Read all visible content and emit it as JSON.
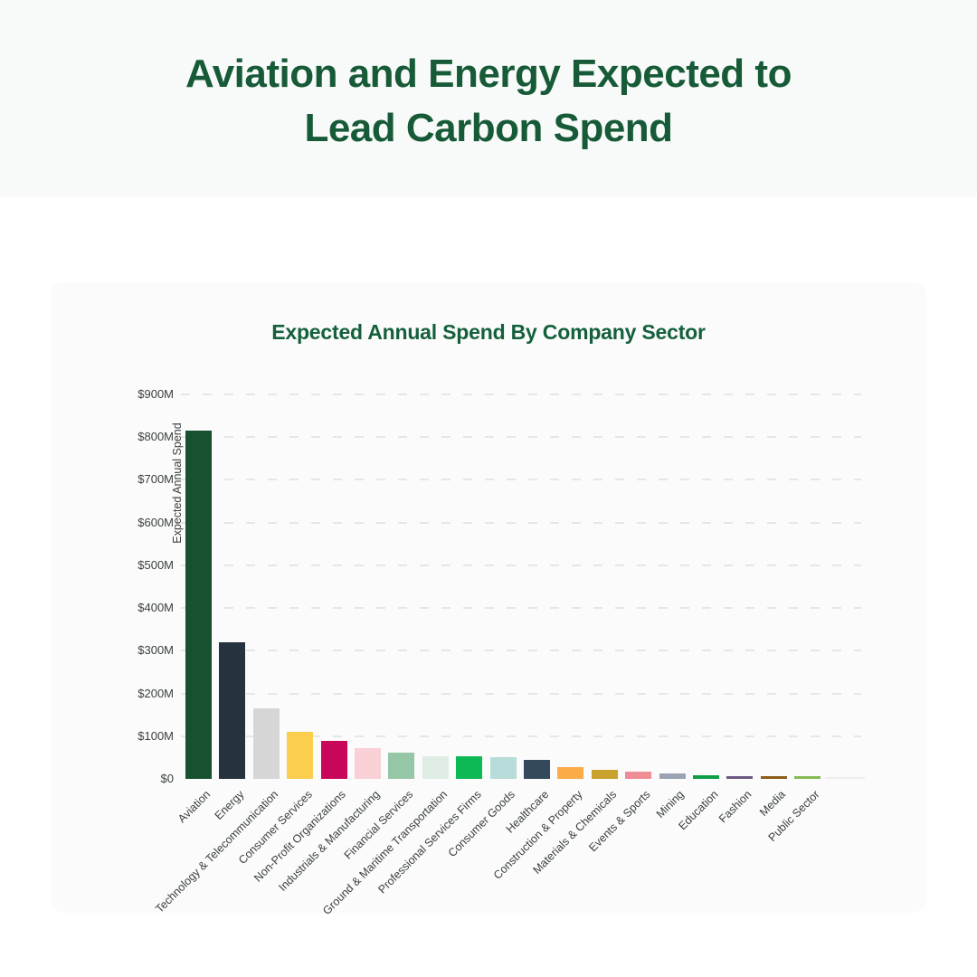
{
  "page": {
    "background": "#ffffff",
    "header": {
      "background": "#f7faf8",
      "title_line1": "Aviation and Energy Expected to",
      "title_line2": "Lead Carbon Spend",
      "title_color": "#175a38"
    },
    "card": {
      "background": "#fafbfa"
    }
  },
  "chart_data": {
    "type": "bar",
    "title": "Expected Annual Spend By Company Sector",
    "title_color": "#15603c",
    "xlabel": "",
    "ylabel": "Expected Annual Spend",
    "ylim": [
      0,
      900
    ],
    "ytick_interval": 100,
    "ytick_labels": [
      "$0",
      "$100M",
      "$200M",
      "$300M",
      "$400M",
      "$500M",
      "$600M",
      "$700M",
      "$800M",
      "$900M"
    ],
    "grid": {
      "horizontal": true,
      "style": "dashed",
      "color": "#e5e7e7",
      "zero_line": false
    },
    "legend": "none",
    "categories": [
      "Aviation",
      "Energy",
      "Technology & Telecommunication",
      "Consumer Services",
      "Non-Profit Organizations",
      "Industrials & Manufacturing",
      "Financial Services",
      "Ground & Maritime Transportation",
      "Professional Services Firms",
      "Consumer Goods",
      "Healthcare",
      "Construction & Property",
      "Materials & Chemicals",
      "Events & Sports",
      "Mining",
      "Education",
      "Fashion",
      "Media",
      "Public Sector"
    ],
    "values": [
      815,
      320,
      165,
      110,
      90,
      73,
      62,
      54,
      52,
      50,
      44,
      27,
      22,
      17,
      13,
      8,
      6,
      6,
      6
    ],
    "colors": [
      "#17512f",
      "#27323f",
      "#d6d6d6",
      "#fcce4e",
      "#c9075a",
      "#f8d0d5",
      "#95c6a5",
      "#dfede5",
      "#0cb955",
      "#b7dcd9",
      "#35495d",
      "#fbab48",
      "#c8a22c",
      "#ee8d95",
      "#99a3b3",
      "#0d9e47",
      "#6d5a82",
      "#8d5c16",
      "#85ba55"
    ],
    "trailing_unlabeled_bar": {
      "value": 4,
      "color": "#ededed"
    }
  }
}
